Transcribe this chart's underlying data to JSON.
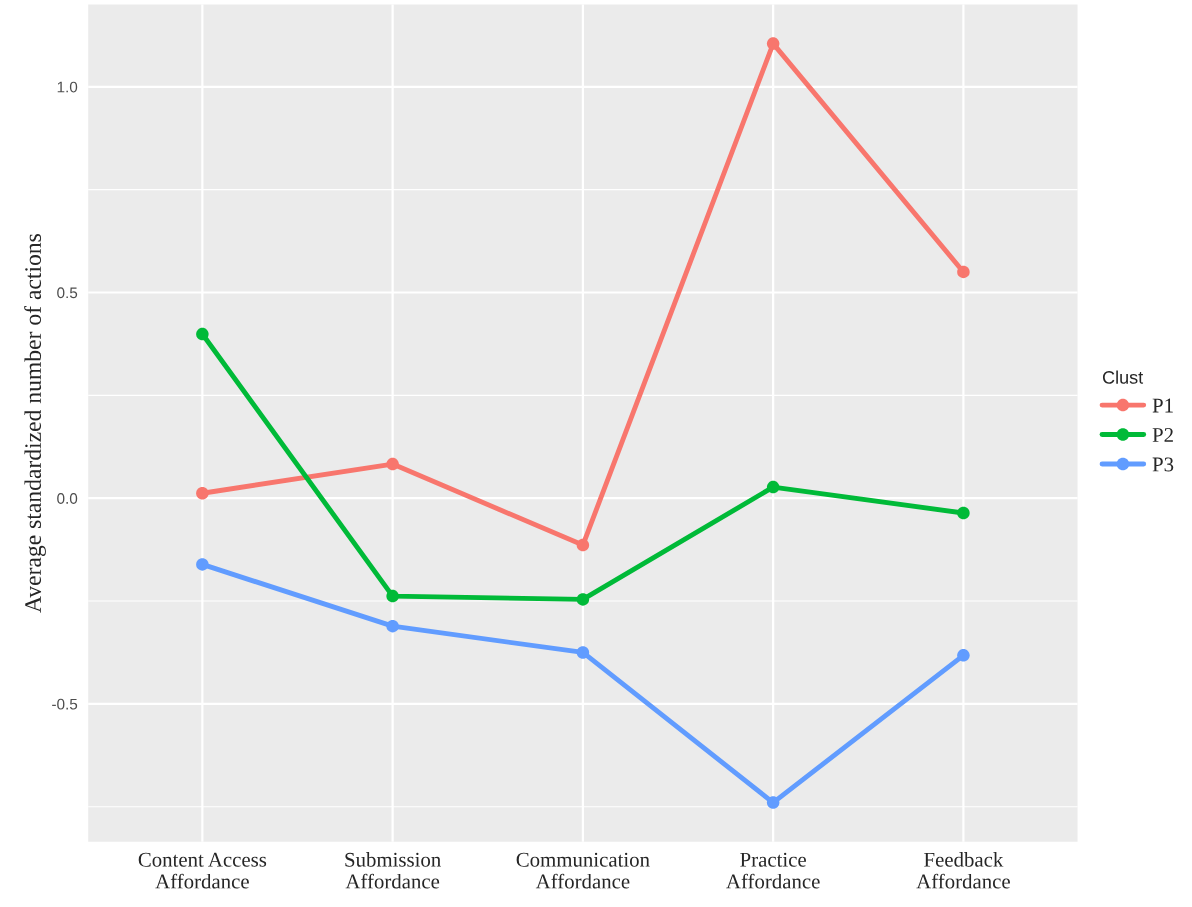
{
  "chart_data": {
    "type": "line",
    "ylabel": "Average standardized number of actions",
    "legend_title": "Clust",
    "categories": [
      "Content Access\nAffordance",
      "Submission\nAffordance",
      "Communication\nAffordance",
      "Practice\nAffordance",
      "Feedback\nAffordance"
    ],
    "series": [
      {
        "name": "P1",
        "color": "#f8766d",
        "values": [
          0.012,
          0.083,
          -0.114,
          1.105,
          0.55
        ]
      },
      {
        "name": "P2",
        "color": "#00ba38",
        "values": [
          0.399,
          -0.238,
          -0.246,
          0.027,
          -0.036
        ]
      },
      {
        "name": "P3",
        "color": "#619cff",
        "values": [
          -0.161,
          -0.311,
          -0.375,
          -0.74,
          -0.382
        ]
      }
    ],
    "ylim": [
      -0.835,
      1.2
    ],
    "yticks": [
      {
        "value": -0.75,
        "label": null
      },
      {
        "value": -0.5,
        "label": "-0.5"
      },
      {
        "value": -0.25,
        "label": null
      },
      {
        "value": 0,
        "label": "0.0"
      },
      {
        "value": 0.25,
        "label": null
      },
      {
        "value": 0.5,
        "label": "0.5"
      },
      {
        "value": 0.75,
        "label": null
      },
      {
        "value": 1,
        "label": "1.0"
      }
    ],
    "grid": true,
    "legend": "right",
    "marker": "circle",
    "line_style": "solid"
  }
}
